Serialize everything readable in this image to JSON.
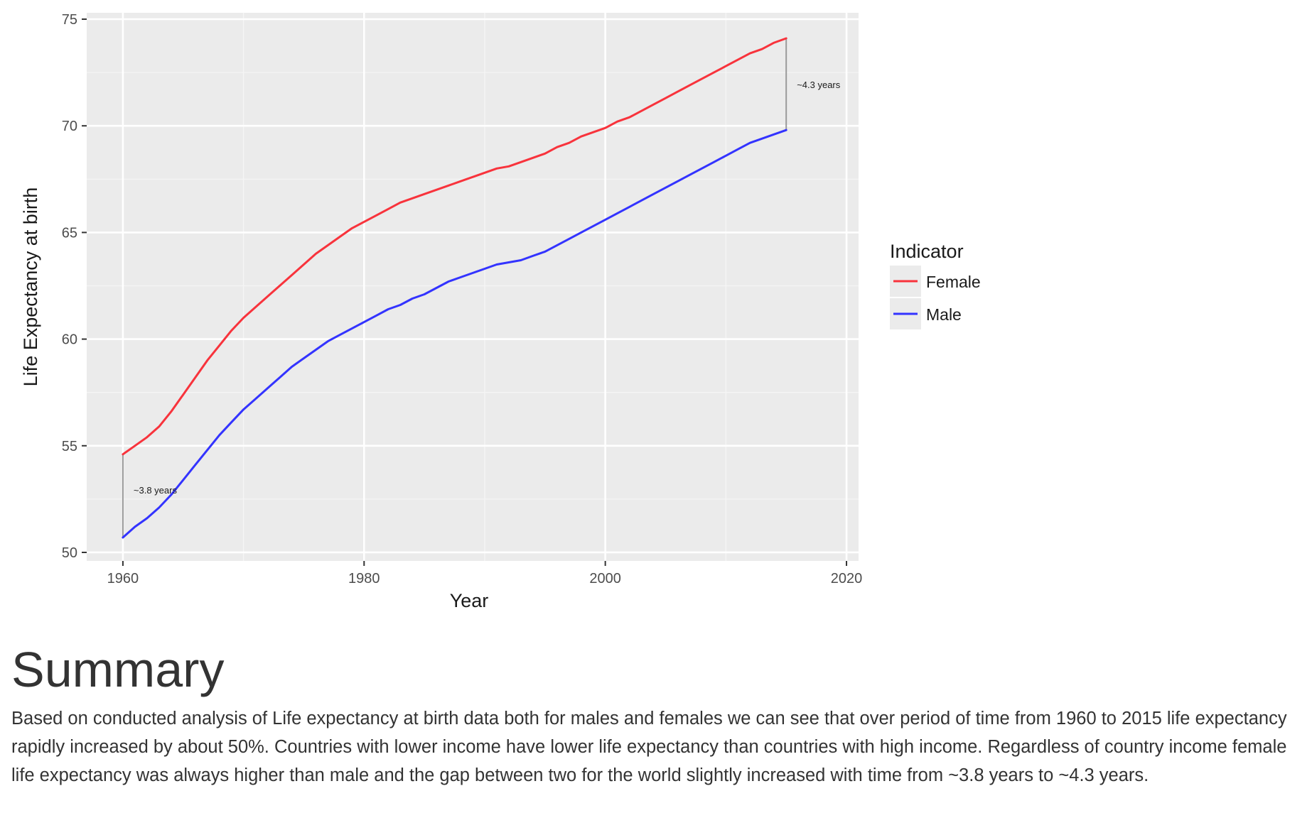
{
  "chart_data": {
    "type": "line",
    "xlabel": "Year",
    "ylabel": "Life Expectancy at birth",
    "xlim": [
      1957,
      2021
    ],
    "ylim": [
      49.6,
      75.3
    ],
    "x_ticks": [
      1960,
      1980,
      2000,
      2020
    ],
    "y_ticks": [
      50,
      55,
      60,
      65,
      70,
      75
    ],
    "grid": true,
    "legend": {
      "title": "Indicator",
      "position": "right"
    },
    "x": [
      1960,
      1961,
      1962,
      1963,
      1964,
      1965,
      1966,
      1967,
      1968,
      1969,
      1970,
      1971,
      1972,
      1973,
      1974,
      1975,
      1976,
      1977,
      1978,
      1979,
      1980,
      1981,
      1982,
      1983,
      1984,
      1985,
      1986,
      1987,
      1988,
      1989,
      1990,
      1991,
      1992,
      1993,
      1994,
      1995,
      1996,
      1997,
      1998,
      1999,
      2000,
      2001,
      2002,
      2003,
      2004,
      2005,
      2006,
      2007,
      2008,
      2009,
      2010,
      2011,
      2012,
      2013,
      2014,
      2015
    ],
    "series": [
      {
        "name": "Female",
        "color": "#f8333c",
        "values": [
          54.6,
          55.0,
          55.4,
          55.9,
          56.6,
          57.4,
          58.2,
          59.0,
          59.7,
          60.4,
          61.0,
          61.5,
          62.0,
          62.5,
          63.0,
          63.5,
          64.0,
          64.4,
          64.8,
          65.2,
          65.5,
          65.8,
          66.1,
          66.4,
          66.6,
          66.8,
          67.0,
          67.2,
          67.4,
          67.6,
          67.8,
          68.0,
          68.1,
          68.3,
          68.5,
          68.7,
          69.0,
          69.2,
          69.5,
          69.7,
          69.9,
          70.2,
          70.4,
          70.7,
          71.0,
          71.3,
          71.6,
          71.9,
          72.2,
          72.5,
          72.8,
          73.1,
          73.4,
          73.6,
          73.9,
          74.1
        ]
      },
      {
        "name": "Male",
        "color": "#3333ff",
        "values": [
          50.7,
          51.2,
          51.6,
          52.1,
          52.7,
          53.4,
          54.1,
          54.8,
          55.5,
          56.1,
          56.7,
          57.2,
          57.7,
          58.2,
          58.7,
          59.1,
          59.5,
          59.9,
          60.2,
          60.5,
          60.8,
          61.1,
          61.4,
          61.6,
          61.9,
          62.1,
          62.4,
          62.7,
          62.9,
          63.1,
          63.3,
          63.5,
          63.6,
          63.7,
          63.9,
          64.1,
          64.4,
          64.7,
          65.0,
          65.3,
          65.6,
          65.9,
          66.2,
          66.5,
          66.8,
          67.1,
          67.4,
          67.7,
          68.0,
          68.3,
          68.6,
          68.9,
          69.2,
          69.4,
          69.6,
          69.8
        ]
      }
    ],
    "annotations": [
      {
        "text": "~3.8 years",
        "x": 1960,
        "y_from": 50.7,
        "y_to": 54.6
      },
      {
        "text": "~4.3 years",
        "x": 2015,
        "y_from": 69.8,
        "y_to": 74.1
      }
    ]
  },
  "summary": {
    "heading": "Summary",
    "paragraph": "Based on conducted analysis of Life expectancy at birth data both for males and females we can see that over period of time from 1960 to 2015 life expectancy rapidly increased by about 50%. Countries with lower income have lower life expectancy than countries with high income. Regardless of country income female life expectancy was always higher than male and the gap between two for the world slightly increased with time from ~3.8 years to ~4.3 years."
  }
}
